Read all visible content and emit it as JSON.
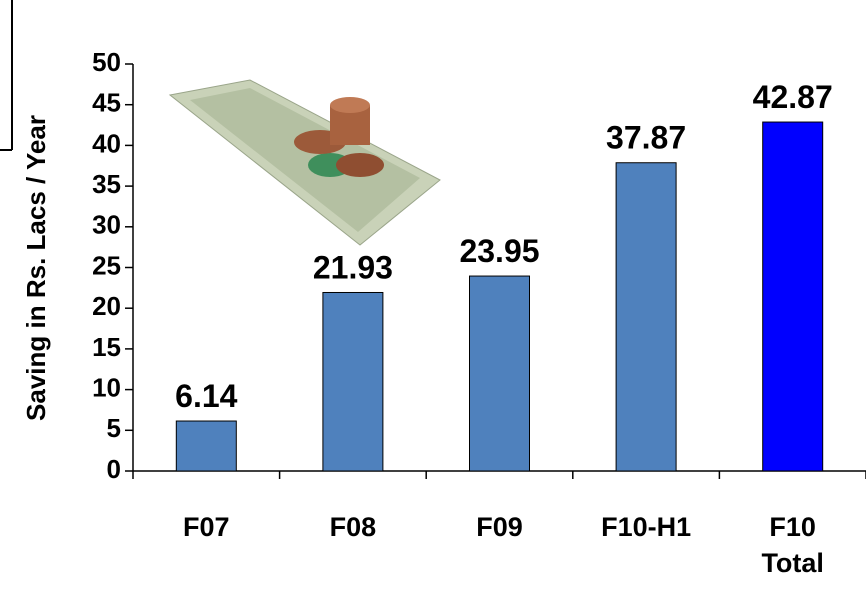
{
  "chart_data": {
    "type": "bar",
    "y_label": "Saving in Rs. Lacs / Year",
    "categories": [
      "F07",
      "F08",
      "F09",
      "F10-H1",
      "F10 Total"
    ],
    "values": [
      6.14,
      21.93,
      23.95,
      37.87,
      42.87
    ],
    "colors": [
      "#4f81bd",
      "#4f81bd",
      "#4f81bd",
      "#4f81bd",
      "#0000ff"
    ],
    "ylim": [
      0,
      50
    ],
    "yticks": [
      0,
      5,
      10,
      15,
      20,
      25,
      30,
      35,
      40,
      45,
      50
    ],
    "grid": false,
    "value_labels_shown": true
  }
}
